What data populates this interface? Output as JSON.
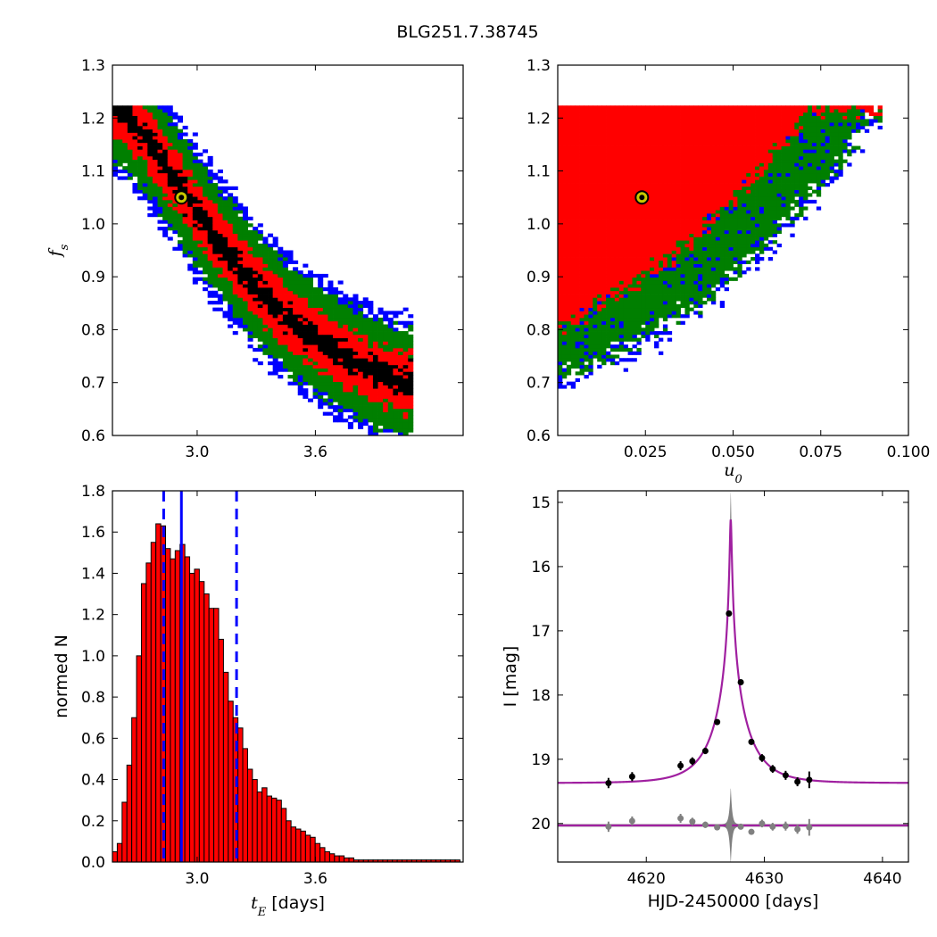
{
  "title": "BLG251.7.38745",
  "colors": {
    "red": "#ff0000",
    "green": "#007f00",
    "blue": "#0000ff",
    "black": "#000000",
    "magenta": "#a020a0",
    "gray": "#808080",
    "marker": "#c8c800"
  },
  "chart_data": [
    {
      "type": "heatmap",
      "panel": "top-left",
      "xlabel": "",
      "ylabel": "f",
      "ylabel_sub": "s",
      "xlim": [
        2.57,
        4.35
      ],
      "ylim": [
        0.6,
        1.3
      ],
      "xticks": [
        3.0,
        3.6
      ],
      "xtick_labels": [
        "3.0",
        "3.6"
      ],
      "yticks": [
        0.6,
        0.7,
        0.8,
        0.9,
        1.0,
        1.1,
        1.2,
        1.3
      ],
      "ytick_labels": [
        "0.6",
        "0.7",
        "0.8",
        "0.9",
        "1.0",
        "1.1",
        "1.2",
        "1.3"
      ],
      "ridge": [
        [
          2.6,
          1.22
        ],
        [
          2.75,
          1.16
        ],
        [
          2.95,
          1.05
        ],
        [
          3.1,
          0.97
        ],
        [
          3.3,
          0.88
        ],
        [
          3.5,
          0.81
        ],
        [
          3.7,
          0.76
        ],
        [
          3.9,
          0.72
        ],
        [
          4.05,
          0.7
        ]
      ],
      "band_halfwidth": {
        "black": 0.02,
        "red": 0.055,
        "green": 0.1,
        "blue": 0.13
      },
      "ymax_cut": 1.222,
      "best_fit": {
        "x": 2.92,
        "y": 1.05
      }
    },
    {
      "type": "heatmap",
      "panel": "top-right",
      "xlabel": "u",
      "xlabel_sub": "0",
      "ylabel": "",
      "xlim": [
        0.0,
        0.1
      ],
      "ylim": [
        0.6,
        1.3
      ],
      "xticks": [
        0.025,
        0.05,
        0.075,
        0.1
      ],
      "xtick_labels": [
        "0.025",
        "0.050",
        "0.075",
        "0.100"
      ],
      "yticks": [
        0.6,
        0.7,
        0.8,
        0.9,
        1.0,
        1.1,
        1.2,
        1.3
      ],
      "ytick_labels": [
        "0.6",
        "0.7",
        "0.8",
        "0.9",
        "1.0",
        "1.1",
        "1.2",
        "1.3"
      ],
      "edge_red": [
        [
          0.0,
          0.8
        ],
        [
          0.02,
          0.88
        ],
        [
          0.04,
          0.98
        ],
        [
          0.06,
          1.12
        ],
        [
          0.072,
          1.22
        ]
      ],
      "edge_green": [
        [
          0.0,
          0.72
        ],
        [
          0.02,
          0.78
        ],
        [
          0.04,
          0.86
        ],
        [
          0.06,
          0.98
        ],
        [
          0.08,
          1.12
        ],
        [
          0.09,
          1.22
        ]
      ],
      "ymax_cut": 1.222,
      "best_fit": {
        "x": 0.024,
        "y": 1.05
      }
    },
    {
      "type": "bar",
      "panel": "bottom-left",
      "xlabel": "t",
      "xlabel_sub": "E",
      "xlabel_rest": " [days]",
      "ylabel": "normed N",
      "xlim": [
        2.57,
        4.35
      ],
      "ylim": [
        0.0,
        1.8
      ],
      "xticks": [
        3.0,
        3.6
      ],
      "xtick_labels": [
        "3.0",
        "3.6"
      ],
      "yticks": [
        0.0,
        0.2,
        0.4,
        0.6,
        0.8,
        1.0,
        1.2,
        1.4,
        1.6,
        1.8
      ],
      "ytick_labels": [
        "0.0",
        "0.2",
        "0.4",
        "0.6",
        "0.8",
        "1.0",
        "1.2",
        "1.4",
        "1.6",
        "1.8"
      ],
      "bin_start": 2.57,
      "bin_width": 0.0245,
      "values": [
        0.05,
        0.09,
        0.29,
        0.47,
        0.7,
        1.0,
        1.35,
        1.45,
        1.55,
        1.64,
        1.63,
        1.52,
        1.47,
        1.51,
        1.54,
        1.48,
        1.4,
        1.42,
        1.36,
        1.3,
        1.23,
        1.23,
        1.08,
        0.92,
        0.78,
        0.7,
        0.65,
        0.55,
        0.45,
        0.4,
        0.34,
        0.36,
        0.32,
        0.31,
        0.3,
        0.26,
        0.2,
        0.17,
        0.16,
        0.15,
        0.13,
        0.12,
        0.09,
        0.07,
        0.05,
        0.04,
        0.03,
        0.03,
        0.02,
        0.02,
        0.01,
        0.01,
        0.01,
        0.01,
        0.01,
        0.01,
        0.01,
        0.01,
        0.01,
        0.01,
        0.01,
        0.01,
        0.01,
        0.01,
        0.01,
        0.01,
        0.01,
        0.01,
        0.01,
        0.01,
        0.01,
        0.01
      ],
      "median": 2.92,
      "percentiles": [
        2.83,
        3.2
      ]
    },
    {
      "type": "line",
      "panel": "bottom-right",
      "xlabel": "HJD-2450000 [days]",
      "ylabel": "I [mag]",
      "xlim": [
        4612.5,
        4642.2
      ],
      "ylim": [
        20.6,
        14.82
      ],
      "xticks": [
        4620,
        4630,
        4640
      ],
      "xtick_labels": [
        "4620",
        "4630",
        "4640"
      ],
      "yticks": [
        15,
        16,
        17,
        18,
        19,
        20
      ],
      "ytick_labels": [
        "15",
        "16",
        "17",
        "18",
        "19",
        "20"
      ],
      "model": {
        "t0": 4627.15,
        "tE": 2.92,
        "u0": 0.024,
        "fs": 1.05,
        "baseline": 19.37
      },
      "residual_baseline": 20.03,
      "data_points": [
        {
          "x": 4616.8,
          "y": 19.37,
          "err": 0.08
        },
        {
          "x": 4618.8,
          "y": 19.27,
          "err": 0.07
        },
        {
          "x": 4622.9,
          "y": 19.1,
          "err": 0.07
        },
        {
          "x": 4623.9,
          "y": 19.03,
          "err": 0.06
        },
        {
          "x": 4625.0,
          "y": 18.87,
          "err": 0.05
        },
        {
          "x": 4626.0,
          "y": 18.42,
          "err": 0.04
        },
        {
          "x": 4627.0,
          "y": 16.73,
          "err": 0.03
        },
        {
          "x": 4628.0,
          "y": 17.8,
          "err": 0.03
        },
        {
          "x": 4628.9,
          "y": 18.73,
          "err": 0.04
        },
        {
          "x": 4629.8,
          "y": 18.98,
          "err": 0.06
        },
        {
          "x": 4630.7,
          "y": 19.15,
          "err": 0.06
        },
        {
          "x": 4631.8,
          "y": 19.25,
          "err": 0.07
        },
        {
          "x": 4632.8,
          "y": 19.35,
          "err": 0.07
        },
        {
          "x": 4633.8,
          "y": 19.32,
          "err": 0.13
        }
      ],
      "residual_points": [
        {
          "x": 4616.8,
          "y": 20.05,
          "err": 0.08
        },
        {
          "x": 4618.8,
          "y": 19.96,
          "err": 0.07
        },
        {
          "x": 4622.9,
          "y": 19.92,
          "err": 0.07
        },
        {
          "x": 4623.9,
          "y": 19.97,
          "err": 0.06
        },
        {
          "x": 4625.0,
          "y": 20.02,
          "err": 0.05
        },
        {
          "x": 4626.0,
          "y": 20.06,
          "err": 0.04
        },
        {
          "x": 4627.0,
          "y": 20.03,
          "err": 0.03
        },
        {
          "x": 4628.0,
          "y": 20.05,
          "err": 0.03
        },
        {
          "x": 4628.9,
          "y": 20.13,
          "err": 0.04
        },
        {
          "x": 4629.8,
          "y": 20.0,
          "err": 0.06
        },
        {
          "x": 4630.7,
          "y": 20.05,
          "err": 0.06
        },
        {
          "x": 4631.8,
          "y": 20.04,
          "err": 0.07
        },
        {
          "x": 4632.8,
          "y": 20.09,
          "err": 0.07
        },
        {
          "x": 4633.8,
          "y": 20.06,
          "err": 0.13
        }
      ]
    }
  ]
}
